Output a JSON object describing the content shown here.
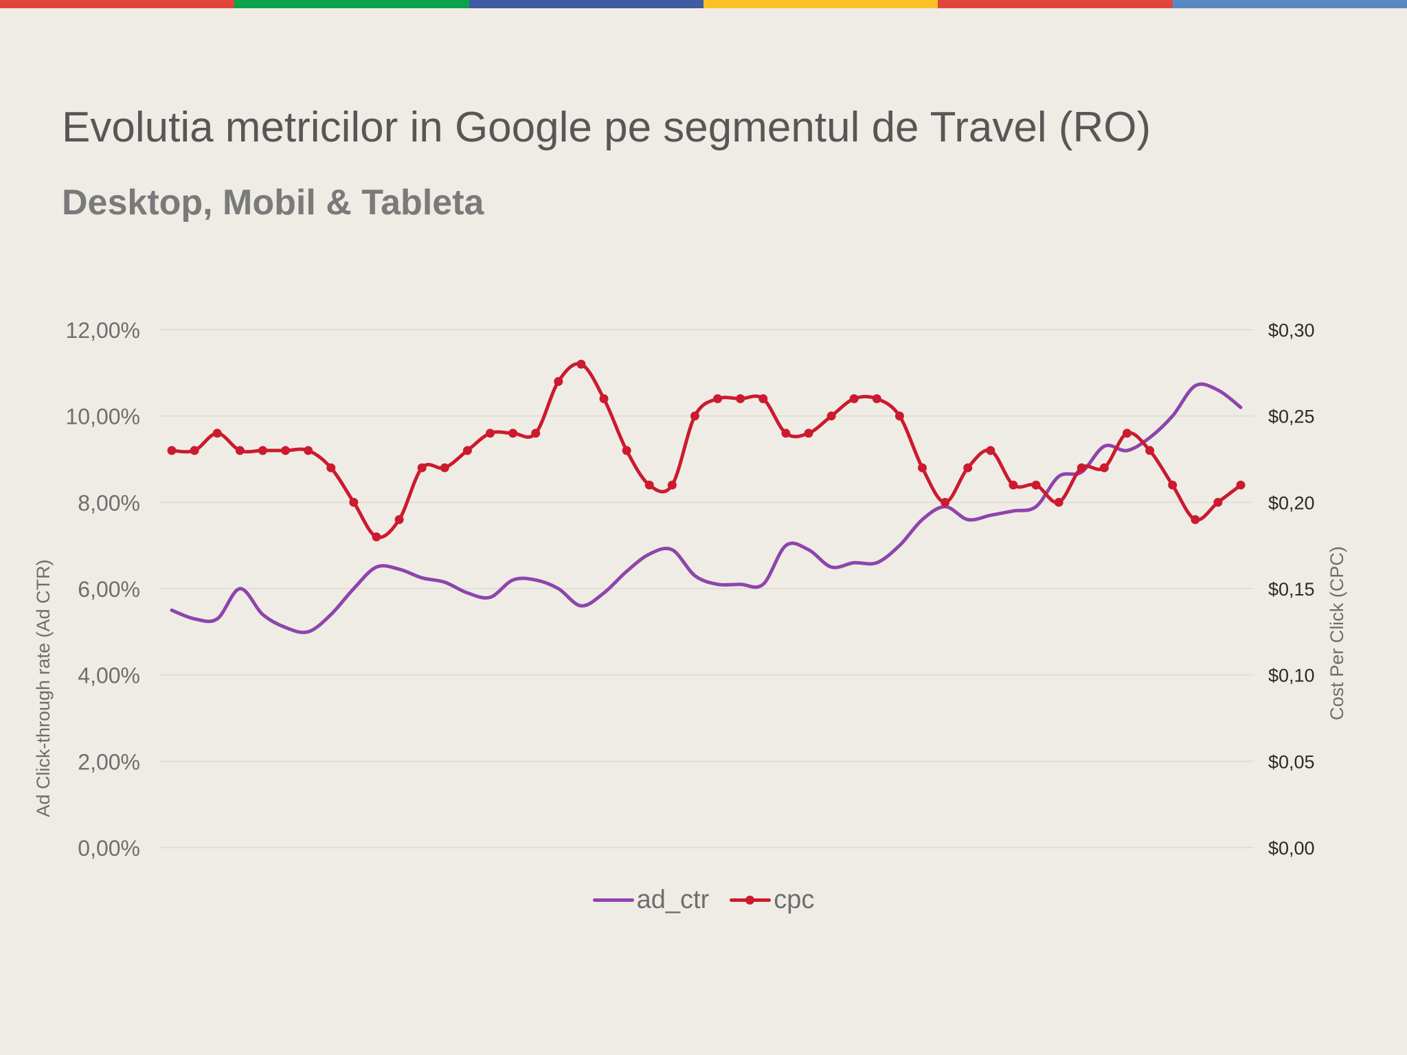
{
  "colors": {
    "background": "#efece5",
    "top_bar": [
      "#e2463a",
      "#0aa34a",
      "#3e5ba3",
      "#fcc027",
      "#e2463a",
      "#5889c4"
    ],
    "ad_ctr": "#8e44ad",
    "cpc": "#cc1a2e",
    "grid": "#e2ded6"
  },
  "header": {
    "title": "Evolutia metricilor in Google pe segmentul de Travel (RO)",
    "subtitle": "Desktop, Mobil & Tableta"
  },
  "chart_data": {
    "type": "line",
    "y_left": {
      "label": "Ad Click-through rate (Ad CTR)",
      "ticks": [
        "0,00%",
        "2,00%",
        "4,00%",
        "6,00%",
        "8,00%",
        "10,00%",
        "12,00%"
      ],
      "ylim": [
        0,
        12
      ]
    },
    "y_right": {
      "label": "Cost Per Click (CPC)",
      "ticks": [
        "$0,00",
        "$0,05",
        "$0,10",
        "$0,15",
        "$0,20",
        "$0,25",
        "$0,30"
      ],
      "ylim": [
        0,
        0.3
      ]
    },
    "legend_position": "bottom-center",
    "series": [
      {
        "name": "ad_ctr",
        "axis": "left",
        "markers": false,
        "values": [
          5.5,
          5.3,
          5.3,
          6.0,
          5.4,
          5.1,
          5.0,
          5.4,
          6.0,
          6.5,
          6.45,
          6.25,
          6.15,
          5.9,
          5.8,
          6.2,
          6.2,
          6.0,
          5.6,
          5.9,
          6.4,
          6.8,
          6.9,
          6.3,
          6.1,
          6.1,
          6.1,
          7.0,
          6.9,
          6.5,
          6.6,
          6.6,
          7.0,
          7.6,
          7.9,
          7.6,
          7.7,
          7.8,
          7.9,
          8.6,
          8.7,
          9.3,
          9.2,
          9.5,
          10.0,
          10.7,
          10.6,
          10.2
        ]
      },
      {
        "name": "cpc",
        "axis": "right",
        "markers": true,
        "values": [
          0.23,
          0.23,
          0.24,
          0.23,
          0.23,
          0.23,
          0.23,
          0.22,
          0.2,
          0.18,
          0.19,
          0.22,
          0.22,
          0.23,
          0.24,
          0.24,
          0.24,
          0.27,
          0.28,
          0.26,
          0.23,
          0.21,
          0.21,
          0.25,
          0.26,
          0.26,
          0.26,
          0.24,
          0.24,
          0.25,
          0.26,
          0.26,
          0.25,
          0.22,
          0.2,
          0.22,
          0.23,
          0.21,
          0.21,
          0.2,
          0.22,
          0.22,
          0.24,
          0.23,
          0.21,
          0.19,
          0.2,
          0.21
        ]
      }
    ]
  }
}
